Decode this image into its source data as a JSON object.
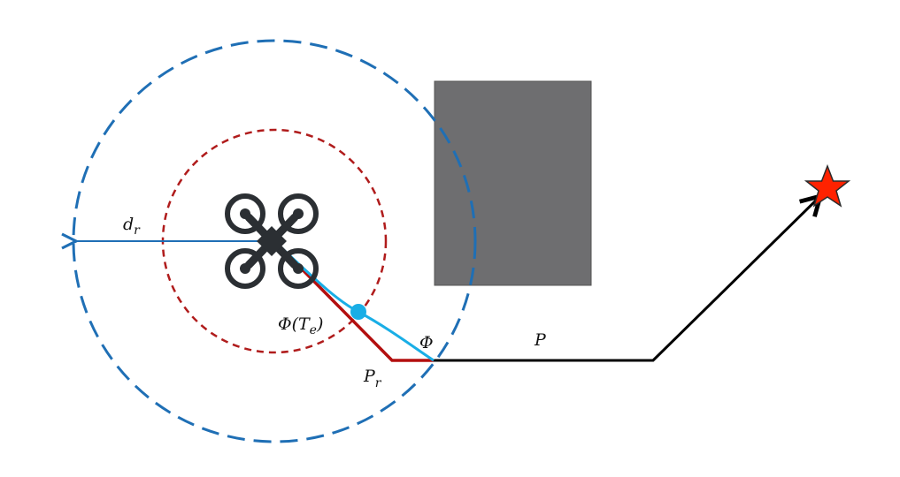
{
  "labels": {
    "range_radius": {
      "main": "d",
      "sub": "r"
    },
    "phi_te": {
      "prefix": "Φ(T",
      "sub": "e",
      "suffix": ")"
    },
    "phi": "Φ",
    "path": "P",
    "replanned_path": {
      "main": "P",
      "sub": "r"
    }
  },
  "colors": {
    "outer_circle": "#1f6fb5",
    "inner_circle": "#b01c1c",
    "obstacle": "#6e6e70",
    "original_path": "#000000",
    "replanned_path": "#b30f0f",
    "smooth_path": "#19aee6",
    "point_marker": "#19aee6",
    "goal_star": "#ff2200",
    "drone": "#2b2f33"
  },
  "icons": {
    "drone": "quadcopter-icon",
    "goal": "star-icon"
  }
}
